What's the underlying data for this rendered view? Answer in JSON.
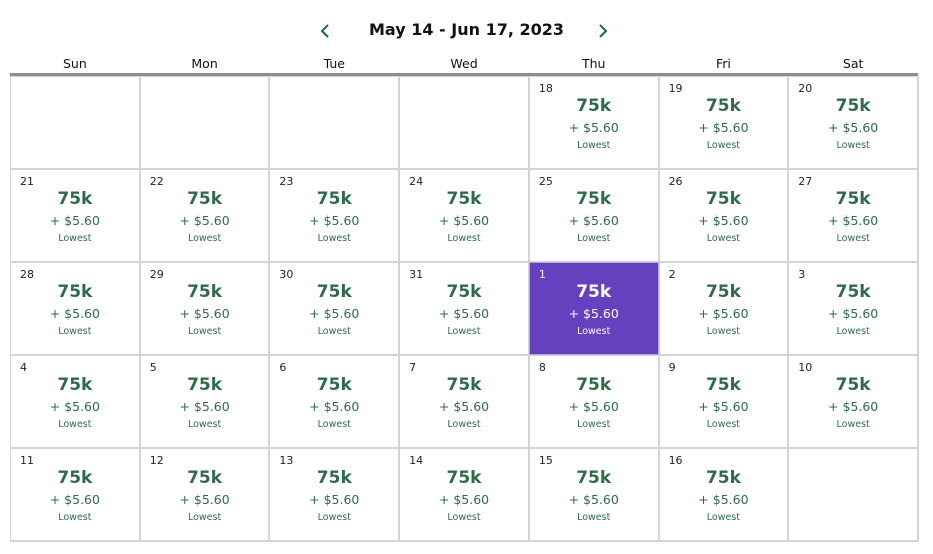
{
  "header": {
    "title": "May 14 - Jun 17, 2023",
    "prev_icon": "chevron-left-icon",
    "next_icon": "chevron-right-icon"
  },
  "days_of_week": [
    "Sun",
    "Mon",
    "Tue",
    "Wed",
    "Thu",
    "Fri",
    "Sat"
  ],
  "colors": {
    "price": "#2f6b4b",
    "selected_bg": "#6441be",
    "nav": "#1f5f6e"
  },
  "selected_day": "1",
  "weeks": [
    [
      null,
      null,
      null,
      null,
      {
        "day": "18",
        "points": "75k",
        "fee": "+ $5.60",
        "label": "Lowest"
      },
      {
        "day": "19",
        "points": "75k",
        "fee": "+ $5.60",
        "label": "Lowest"
      },
      {
        "day": "20",
        "points": "75k",
        "fee": "+ $5.60",
        "label": "Lowest"
      }
    ],
    [
      {
        "day": "21",
        "points": "75k",
        "fee": "+ $5.60",
        "label": "Lowest"
      },
      {
        "day": "22",
        "points": "75k",
        "fee": "+ $5.60",
        "label": "Lowest"
      },
      {
        "day": "23",
        "points": "75k",
        "fee": "+ $5.60",
        "label": "Lowest"
      },
      {
        "day": "24",
        "points": "75k",
        "fee": "+ $5.60",
        "label": "Lowest"
      },
      {
        "day": "25",
        "points": "75k",
        "fee": "+ $5.60",
        "label": "Lowest"
      },
      {
        "day": "26",
        "points": "75k",
        "fee": "+ $5.60",
        "label": "Lowest"
      },
      {
        "day": "27",
        "points": "75k",
        "fee": "+ $5.60",
        "label": "Lowest"
      }
    ],
    [
      {
        "day": "28",
        "points": "75k",
        "fee": "+ $5.60",
        "label": "Lowest"
      },
      {
        "day": "29",
        "points": "75k",
        "fee": "+ $5.60",
        "label": "Lowest"
      },
      {
        "day": "30",
        "points": "75k",
        "fee": "+ $5.60",
        "label": "Lowest"
      },
      {
        "day": "31",
        "points": "75k",
        "fee": "+ $5.60",
        "label": "Lowest"
      },
      {
        "day": "1",
        "points": "75k",
        "fee": "+ $5.60",
        "label": "Lowest",
        "selected": true
      },
      {
        "day": "2",
        "points": "75k",
        "fee": "+ $5.60",
        "label": "Lowest"
      },
      {
        "day": "3",
        "points": "75k",
        "fee": "+ $5.60",
        "label": "Lowest"
      }
    ],
    [
      {
        "day": "4",
        "points": "75k",
        "fee": "+ $5.60",
        "label": "Lowest"
      },
      {
        "day": "5",
        "points": "75k",
        "fee": "+ $5.60",
        "label": "Lowest"
      },
      {
        "day": "6",
        "points": "75k",
        "fee": "+ $5.60",
        "label": "Lowest"
      },
      {
        "day": "7",
        "points": "75k",
        "fee": "+ $5.60",
        "label": "Lowest"
      },
      {
        "day": "8",
        "points": "75k",
        "fee": "+ $5.60",
        "label": "Lowest"
      },
      {
        "day": "9",
        "points": "75k",
        "fee": "+ $5.60",
        "label": "Lowest"
      },
      {
        "day": "10",
        "points": "75k",
        "fee": "+ $5.60",
        "label": "Lowest"
      }
    ],
    [
      {
        "day": "11",
        "points": "75k",
        "fee": "+ $5.60",
        "label": "Lowest"
      },
      {
        "day": "12",
        "points": "75k",
        "fee": "+ $5.60",
        "label": "Lowest"
      },
      {
        "day": "13",
        "points": "75k",
        "fee": "+ $5.60",
        "label": "Lowest"
      },
      {
        "day": "14",
        "points": "75k",
        "fee": "+ $5.60",
        "label": "Lowest"
      },
      {
        "day": "15",
        "points": "75k",
        "fee": "+ $5.60",
        "label": "Lowest"
      },
      {
        "day": "16",
        "points": "75k",
        "fee": "+ $5.60",
        "label": "Lowest"
      },
      null
    ]
  ]
}
